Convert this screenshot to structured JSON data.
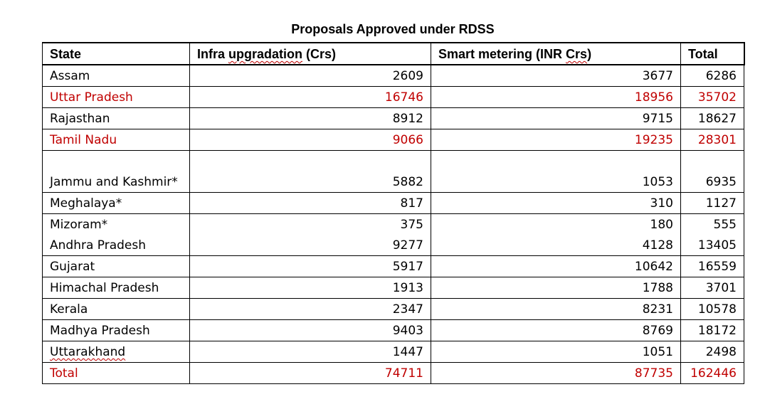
{
  "title": "Proposals Approved under RDSS",
  "columns": [
    "State",
    "Infra upgradation (Crs)",
    "Smart metering (INR Crs)",
    "Total"
  ],
  "column_parts": {
    "infra_prefix": "Infra ",
    "infra_squiggle": "upgradation",
    "infra_suffix": " (Crs)",
    "smart_prefix": "Smart metering (INR ",
    "smart_squiggle": "Crs",
    "smart_suffix": ")"
  },
  "rows": [
    {
      "state": "Assam",
      "infra": "2609",
      "smart": "3677",
      "total": "6286",
      "highlight": false
    },
    {
      "state": "Uttar Pradesh",
      "infra": "16746",
      "smart": "18956",
      "total": "35702",
      "highlight": true
    },
    {
      "state": "Rajasthan",
      "infra": "8912",
      "smart": "9715",
      "total": "18627",
      "highlight": false
    },
    {
      "state": "Tamil Nadu",
      "infra": "9066",
      "smart": "19235",
      "total": "28301",
      "highlight": true
    },
    {
      "state": "Jammu and Kashmir*",
      "infra": "5882",
      "smart": "1053",
      "total": "6935",
      "highlight": false
    },
    {
      "state": "Meghalaya*",
      "infra": "817",
      "smart": "310",
      "total": "1127",
      "highlight": false
    },
    {
      "state": "Mizoram*",
      "infra": "375",
      "smart": "180",
      "total": "555",
      "highlight": false
    },
    {
      "state": "Andhra Pradesh",
      "infra": "9277",
      "smart": "4128",
      "total": "13405",
      "highlight": false
    },
    {
      "state": "Gujarat",
      "infra": "5917",
      "smart": "10642",
      "total": "16559",
      "highlight": false
    },
    {
      "state": "Himachal Pradesh",
      "infra": "1913",
      "smart": "1788",
      "total": "3701",
      "highlight": false
    },
    {
      "state": "Kerala",
      "infra": "2347",
      "smart": "8231",
      "total": "10578",
      "highlight": false
    },
    {
      "state": "Madhya Pradesh",
      "infra": "9403",
      "smart": "8769",
      "total": "18172",
      "highlight": false
    },
    {
      "state": "Uttarakhand",
      "infra": "1447",
      "smart": "1051",
      "total": "2498",
      "highlight": false
    }
  ],
  "total_row": {
    "state": "Total",
    "infra": "74711",
    "smart": "87735",
    "total": "162446"
  },
  "colors": {
    "highlight": "#c00000",
    "text": "#000000"
  }
}
